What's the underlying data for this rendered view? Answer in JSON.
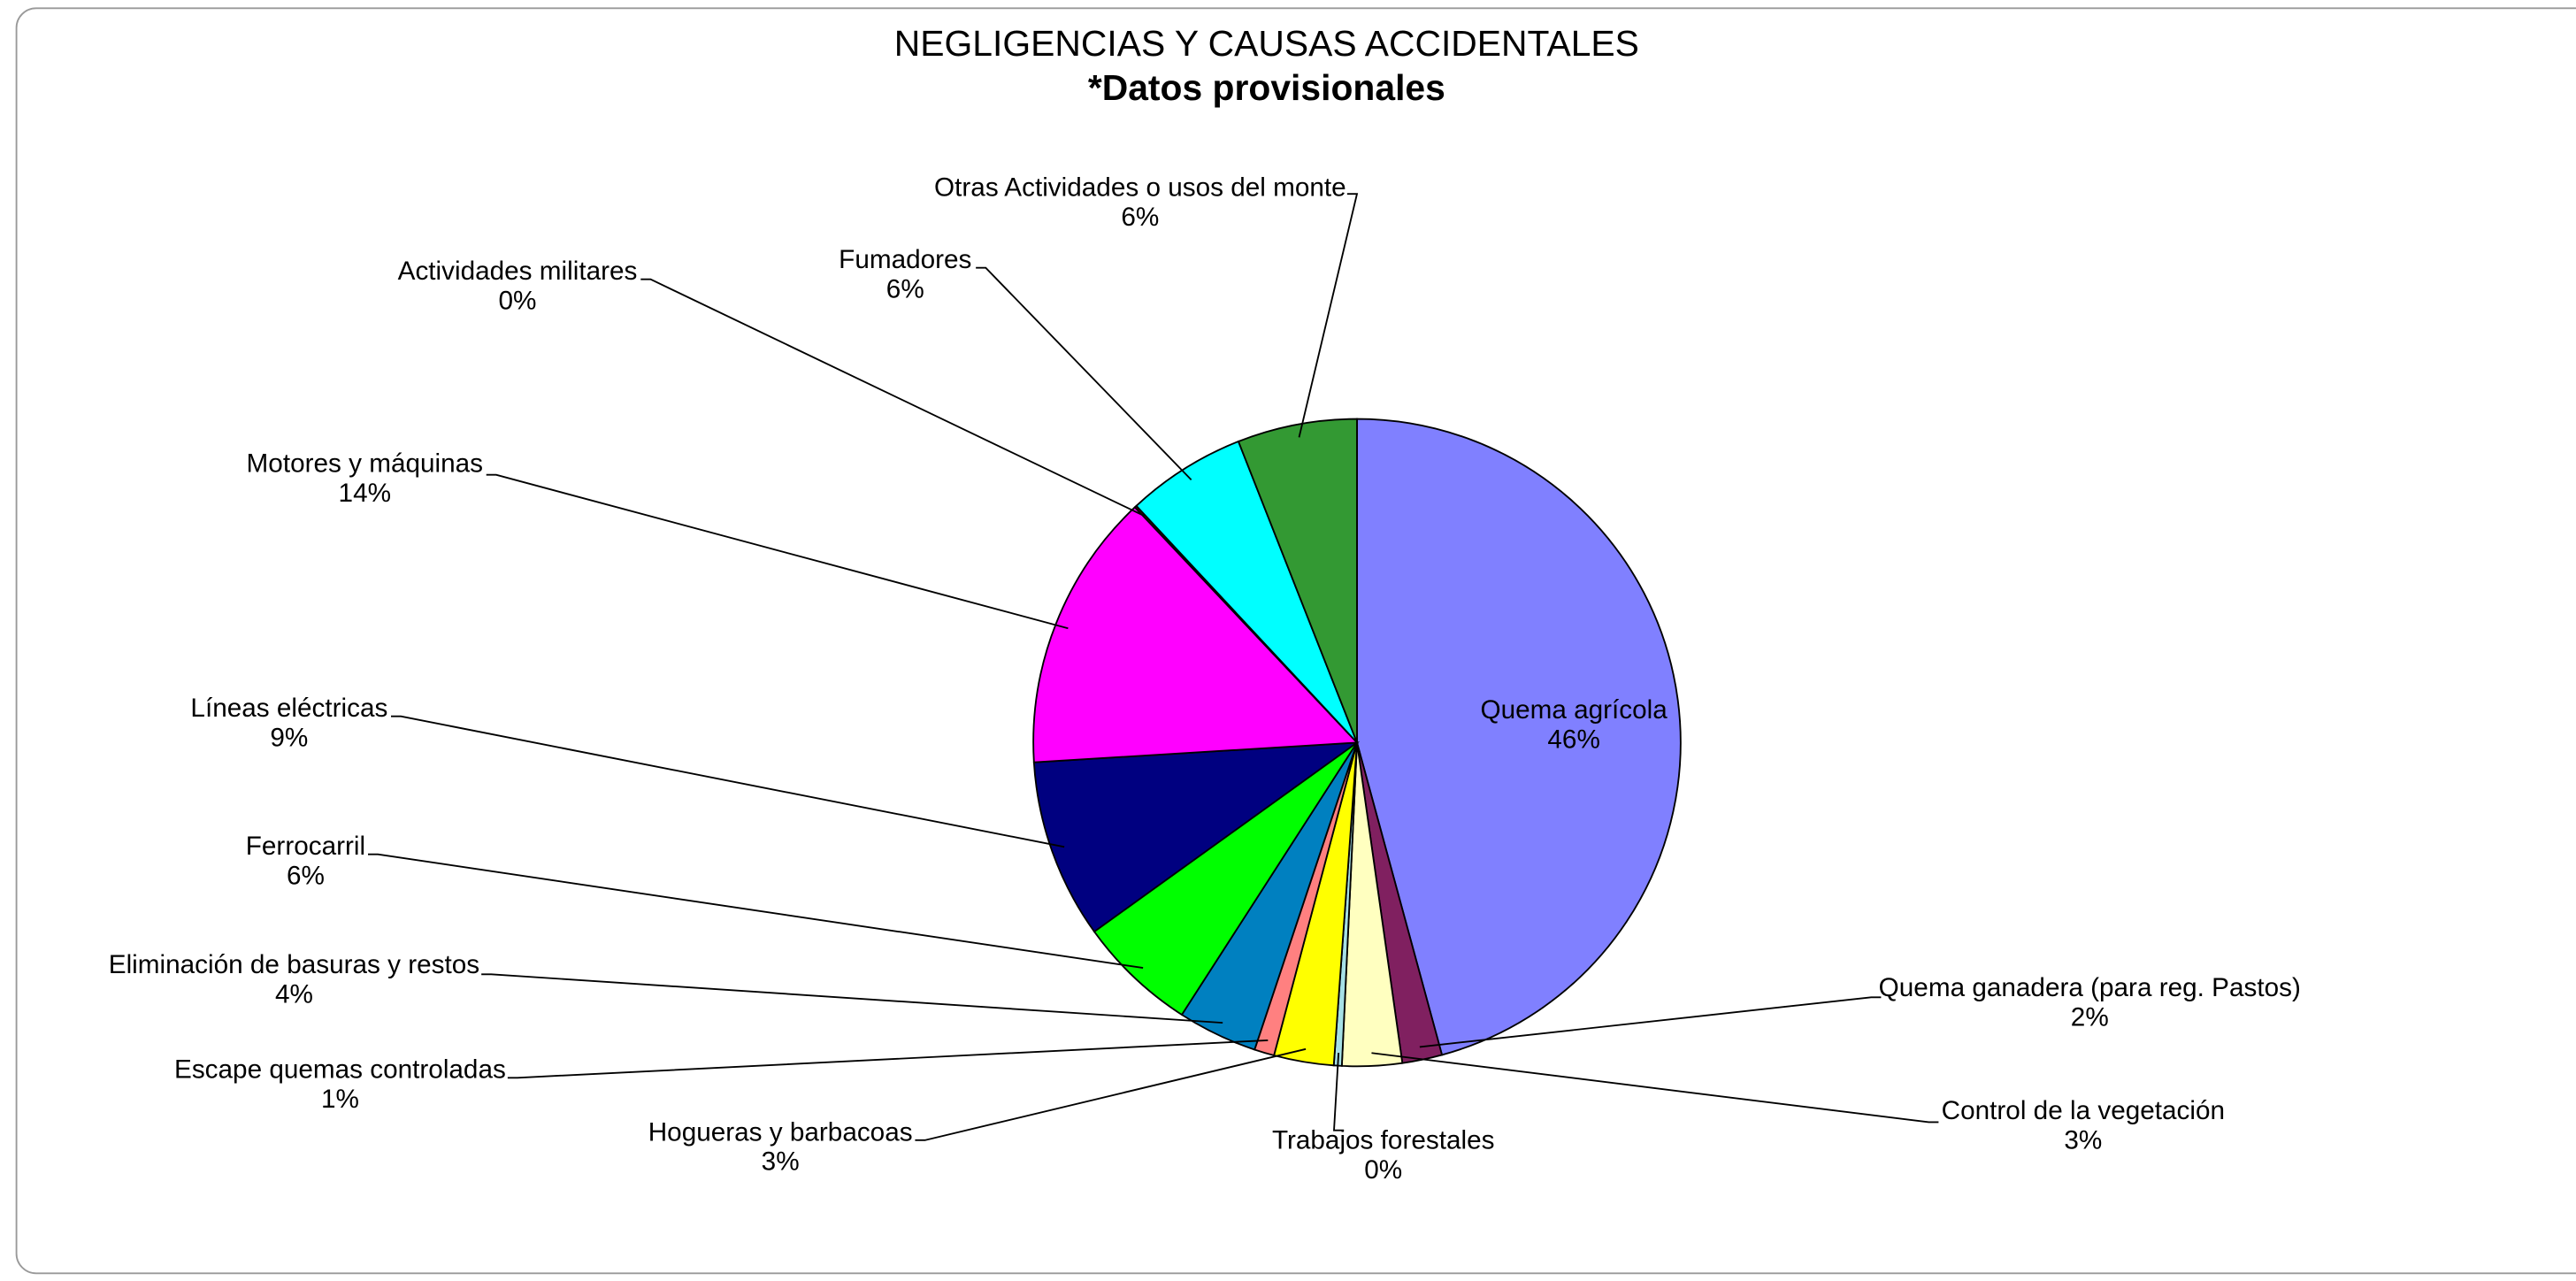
{
  "chart_data": {
    "type": "pie",
    "title": "NEGLIGENCIAS Y CAUSAS ACCIDENTALES",
    "subtitle": "*Datos provisionales",
    "categories": [
      "Quema agrícola",
      "Quema ganadera (para reg. Pastos)",
      "Control de la vegetación",
      "Trabajos forestales",
      "Hogueras y barbacoas",
      "Escape quemas controladas",
      "Eliminación de basuras y restos",
      "Ferrocarril",
      "Líneas eléctricas",
      "Motores y máquinas",
      "Actividades militares",
      "Fumadores",
      "Otras Actividades o usos del monte"
    ],
    "values": [
      46,
      2,
      3,
      0.4,
      3,
      1,
      4,
      6,
      9,
      14,
      0.1,
      6,
      6
    ],
    "value_labels": [
      "46%",
      "2%",
      "3%",
      "0%",
      "3%",
      "1%",
      "4%",
      "6%",
      "9%",
      "14%",
      "0%",
      "6%",
      "6%"
    ],
    "colors": [
      "#8080ff",
      "#802060",
      "#ffffc0",
      "#a6e0e6",
      "#ffff00",
      "#ff8080",
      "#0080c0",
      "#00ff00",
      "#000080",
      "#ff00ff",
      "#800000",
      "#00ffff",
      "#339933"
    ]
  }
}
